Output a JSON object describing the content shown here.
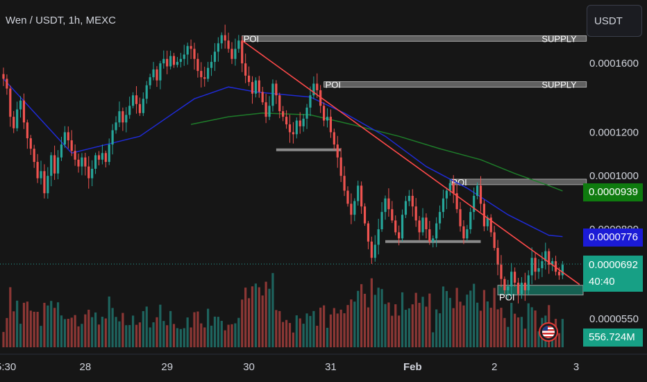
{
  "header": {
    "symbol_title": "Wen / USDT, 1h, MEXC",
    "currency_button": "USDT"
  },
  "colors": {
    "background": "#161616",
    "bull": "#26a69a",
    "bear": "#ef5350",
    "ma_fast": "#1f2bd6",
    "ma_slow": "#1e7d2a",
    "trendline": "#ff4a4a",
    "zone": "#9e9e9e"
  },
  "price_tags": {
    "ma_slow": {
      "value": "0.0000939",
      "color": "#0f7b0f"
    },
    "ma_fast": {
      "value": "0.0000776",
      "color": "#1b1bd6"
    },
    "last_price": {
      "value": "0.0000692",
      "countdown": "40:40",
      "color": "#17a085"
    },
    "volume": {
      "value": "556.724M",
      "color": "#17a085"
    }
  },
  "chart_data": {
    "type": "candlestick",
    "title": "Wen / USDT, 1h, MEXC",
    "x_ticks": [
      {
        "label": "5:30",
        "t": 0
      },
      {
        "label": "28",
        "t": 24
      },
      {
        "label": "29",
        "t": 48
      },
      {
        "label": "30",
        "t": 72
      },
      {
        "label": "31",
        "t": 96
      },
      {
        "label": "Feb",
        "t": 120
      },
      {
        "label": "2",
        "t": 144
      },
      {
        "label": "3",
        "t": 168
      }
    ],
    "y_ticks": [
      {
        "label": "0.0001600",
        "v": 0.00016
      },
      {
        "label": "0.0001200",
        "v": 0.00012
      },
      {
        "label": "0.0001000",
        "v": 0.0001
      },
      {
        "label": "0.0000800",
        "v": 8e-05
      },
      {
        "label": "0.0000550",
        "v": 5.5e-05
      }
    ],
    "ylim": [
      5.3e-05,
      0.00019
    ],
    "xlim": [
      0,
      172
    ],
    "candles_close": [
      0.00015,
      0.000144,
      0.000128,
      0.000122,
      0.000132,
      0.000137,
      0.000125,
      0.000117,
      0.000112,
      0.000106,
      9.9e-05,
      0.000102,
      9.3e-05,
      0.0001,
      0.000109,
      0.000101,
      0.000108,
      0.000114,
      0.00012,
      0.000116,
      0.000111,
      0.000107,
      0.000104,
      0.000108,
      0.000104,
      9.9e-05,
      0.000103,
      0.000109,
      0.000107,
      0.00011,
      0.000106,
      0.000114,
      0.000121,
      0.000125,
      0.000131,
      0.000125,
      0.000129,
      0.000134,
      0.00014,
      0.000135,
      0.00013,
      0.000138,
      0.000146,
      0.000151,
      0.000156,
      0.000149,
      0.00016,
      0.000163,
      0.000158,
      0.000165,
      0.000159,
      0.000161,
      0.000163,
      0.000166,
      0.000172,
      0.00017,
      0.000163,
      0.000155,
      0.000151,
      0.00015,
      0.000157,
      0.000161,
      0.000168,
      0.000174,
      0.00018,
      0.000176,
      0.00017,
      0.000163,
      0.00017,
      0.000176,
      0.00016,
      0.000152,
      0.000148,
      0.000141,
      0.000149,
      0.000142,
      0.000136,
      0.000128,
      0.000134,
      0.000147,
      0.00014,
      0.000131,
      0.000128,
      0.000124,
      0.00012,
      0.000119,
      0.000126,
      0.000123,
      0.000127,
      0.000133,
      0.00014,
      0.000147,
      0.000143,
      0.000134,
      0.000126,
      0.000128,
      0.00012,
      0.000114,
      0.000108,
      0.0001,
      9.4e-05,
      8.9e-05,
      8.5e-05,
      9e-05,
      9.6e-05,
      8.8e-05,
      8.2e-05,
      7.6e-05,
      7.1e-05,
      7.5e-05,
      8e-05,
      8.6e-05,
      9.1e-05,
      8.7e-05,
      8.3e-05,
      7.9e-05,
      7.7e-05,
      8.5e-05,
      9e-05,
      9.2e-05,
      8.8e-05,
      8.3e-05,
      7.9e-05,
      8.4e-05,
      8e-05,
      7.6e-05,
      7.7e-05,
      8.2e-05,
      8.6e-05,
      9.1e-05,
      9.4e-05,
      9.7e-05,
      9.3e-05,
      8.7e-05,
      8.1e-05,
      7.7e-05,
      8e-05,
      8.6e-05,
      9.2e-05,
      9.6e-05,
      8.9e-05,
      8.1e-05,
      8.4e-05,
      7.9e-05,
      7.4e-05,
      6.9e-05,
      6.5e-05,
      6.2e-05,
      6.3e-05,
      6.7e-05,
      6.4e-05,
      6.1e-05,
      6.4e-05,
      6.2e-05,
      6.6e-05,
      7.1e-05,
      6.7e-05,
      6.8e-05,
      7e-05,
      7.3e-05,
      6.9e-05,
      7e-05,
      6.7e-05,
      6.6e-05,
      6.9e-05
    ],
    "volume_scale_note": "",
    "zones": [
      {
        "label": "POI",
        "right_label": "SUPPLY",
        "t_start": 70,
        "t_end": 171,
        "v": 0.0001775
      },
      {
        "label": "POI",
        "right_label": "SUPPLY",
        "t_start": 94,
        "t_end": 171,
        "v": 0.0001465
      },
      {
        "label": "POI",
        "right_label": "",
        "t_start": 131,
        "t_end": 171,
        "v": 9.75e-05
      },
      {
        "label": "POI",
        "right_label": "",
        "t_start": 145,
        "t_end": 171,
        "v": 6.15e-05
      }
    ],
    "support_lines": [
      {
        "t_start": 80,
        "t_end": 99,
        "v": 0.0001115
      },
      {
        "t_start": 112,
        "t_end": 140,
        "v": 7.6e-05
      }
    ],
    "trendline": {
      "t_start": 70,
      "v_start": 0.000176,
      "t_end": 169,
      "v_end": 6.35e-05
    },
    "last_price_line": 6.92e-05,
    "ma_fast": [
      [
        0,
        0.00015
      ],
      [
        20,
        0.00011
      ],
      [
        40,
        0.000118
      ],
      [
        56,
        0.000138
      ],
      [
        66,
        0.000145
      ],
      [
        74,
        0.000142
      ],
      [
        90,
        0.000139
      ],
      [
        100,
        0.00013
      ],
      [
        112,
        0.000118
      ],
      [
        124,
        0.000104
      ],
      [
        136,
        9.5e-05
      ],
      [
        148,
        8.5e-05
      ],
      [
        160,
        7.8e-05
      ],
      [
        164,
        7.76e-05
      ]
    ],
    "ma_slow": [
      [
        55,
        0.000124
      ],
      [
        66,
        0.000128
      ],
      [
        76,
        0.00013
      ],
      [
        90,
        0.000129
      ],
      [
        102,
        0.000124
      ],
      [
        116,
        0.000118
      ],
      [
        128,
        0.000112
      ],
      [
        140,
        0.000107
      ],
      [
        150,
        0.000101
      ],
      [
        160,
        9.6e-05
      ],
      [
        164,
        9.39e-05
      ]
    ]
  }
}
